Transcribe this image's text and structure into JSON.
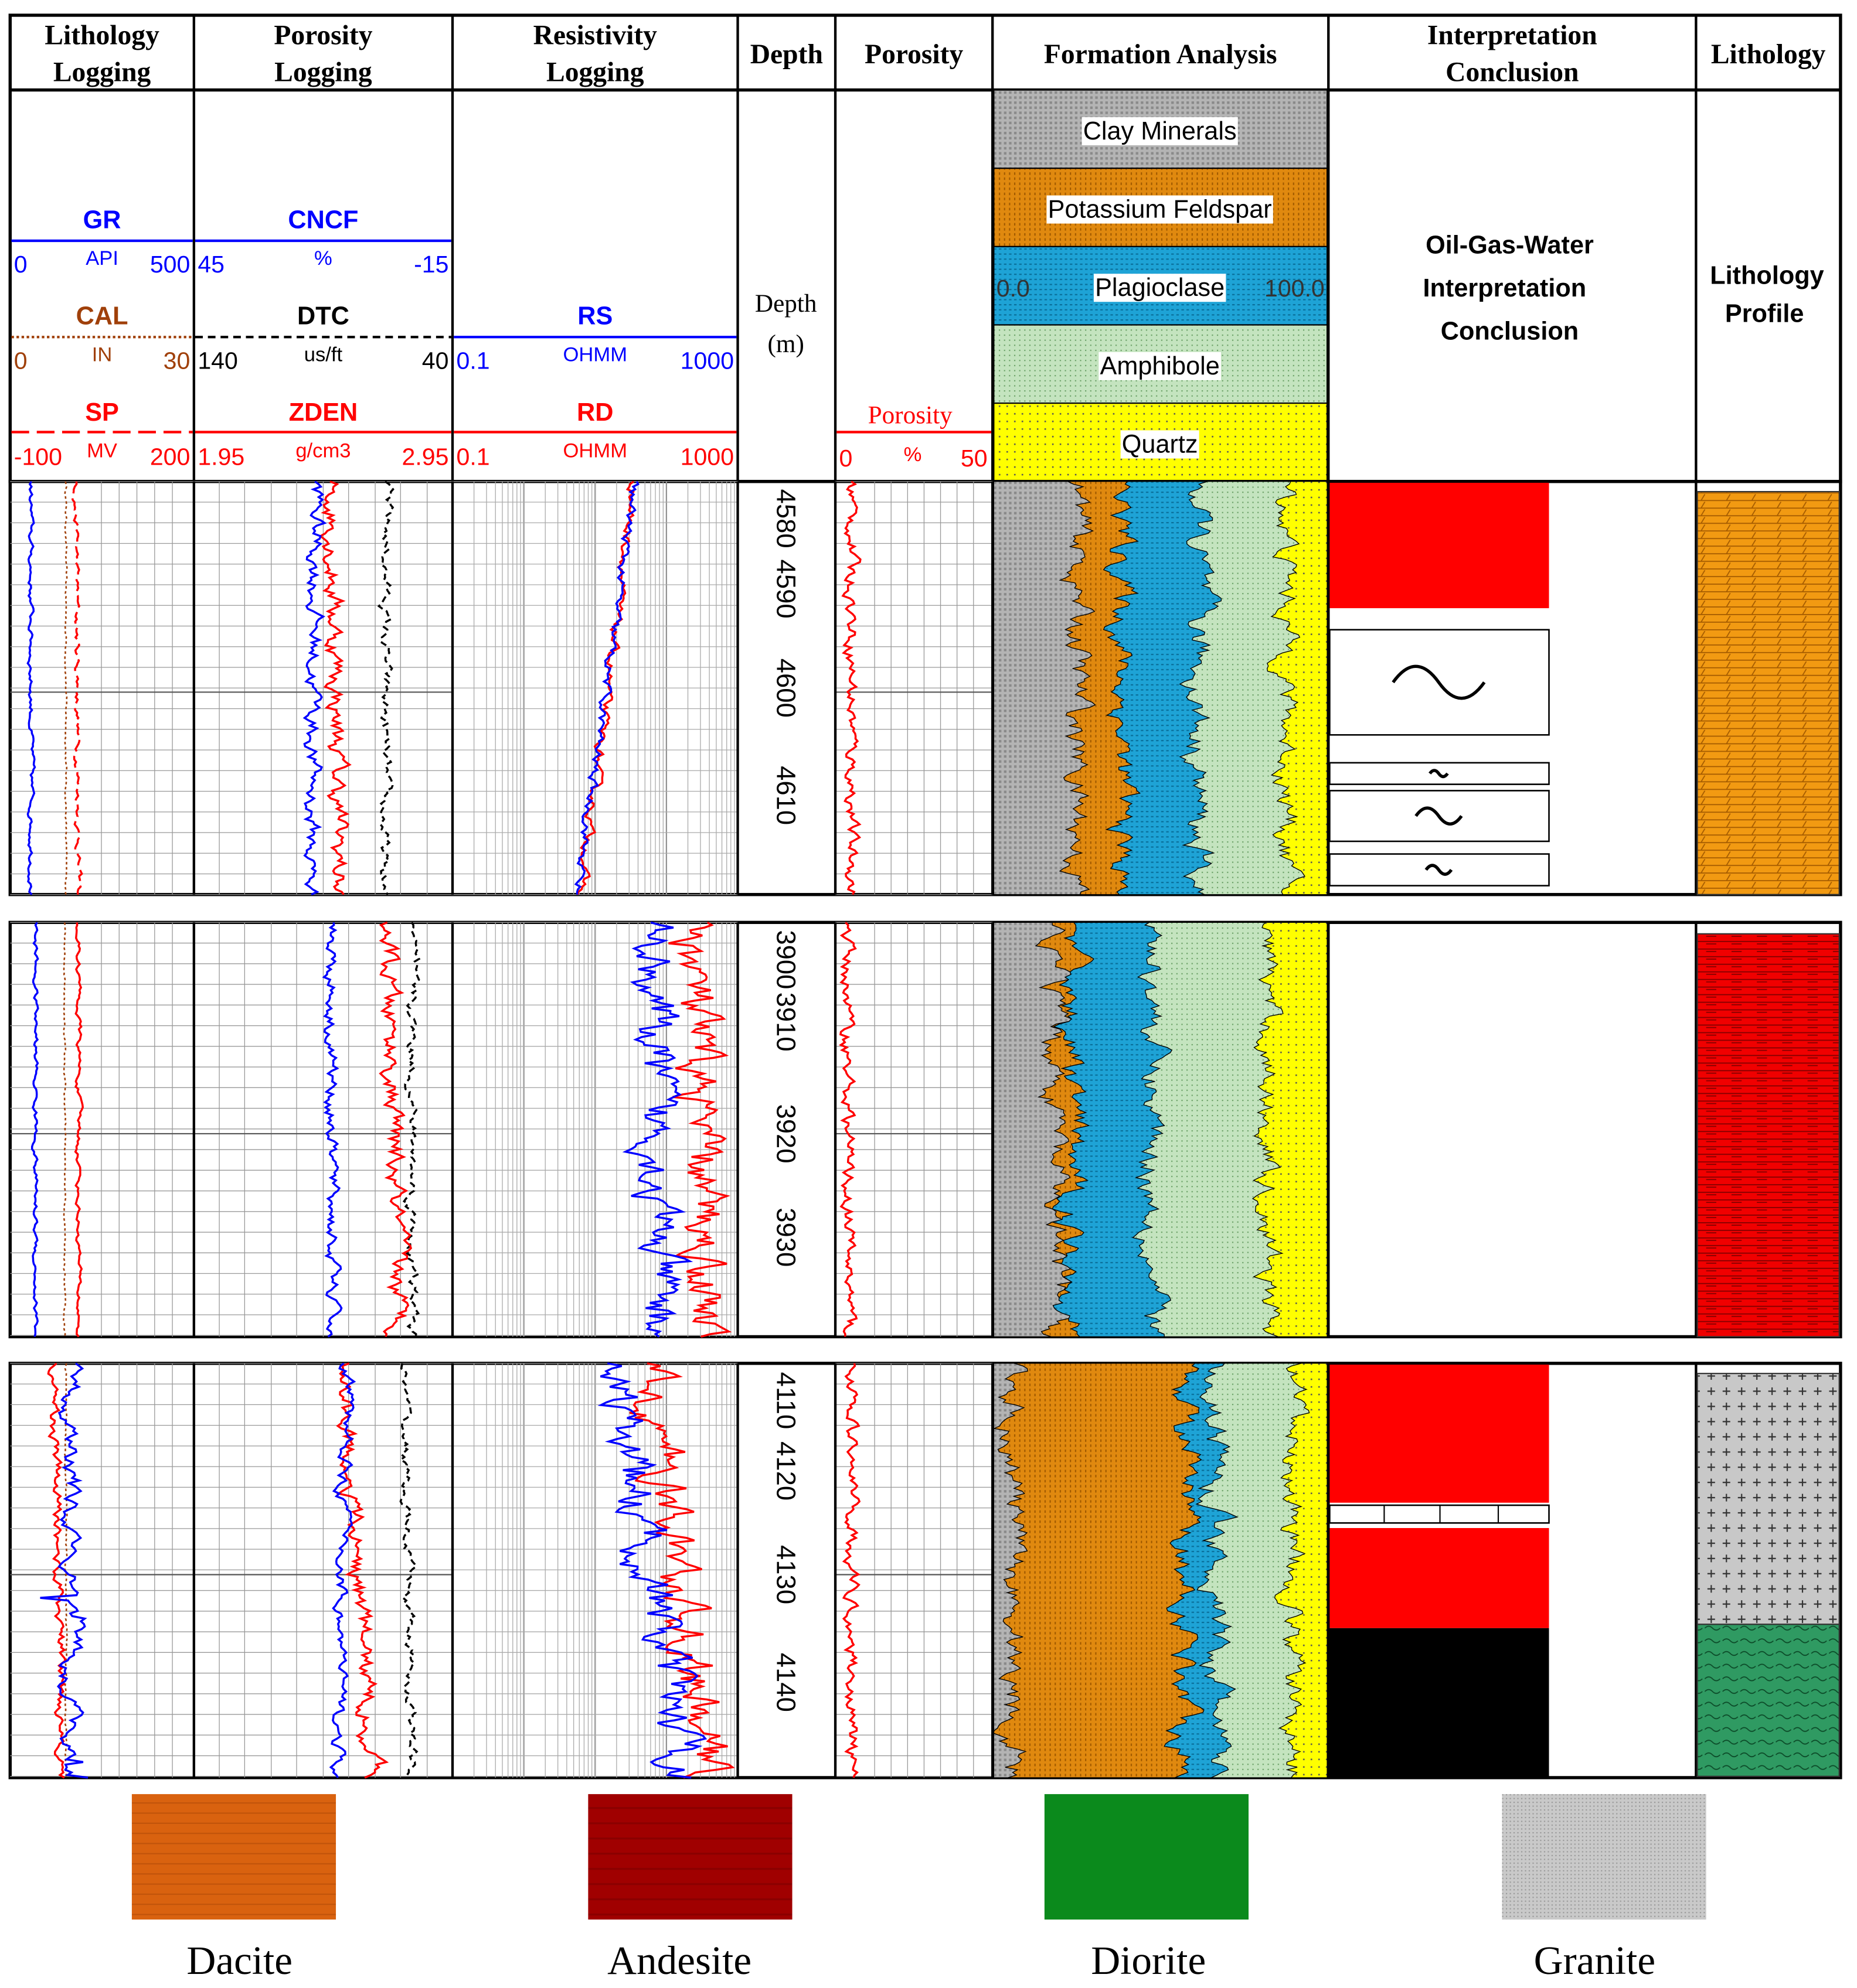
{
  "columns": [
    {
      "title": [
        "Lithology",
        "Logging"
      ]
    },
    {
      "title": [
        "Porosity",
        "Logging"
      ]
    },
    {
      "title": [
        "Resistivity",
        "Logging"
      ]
    },
    {
      "title": [
        "Depth"
      ]
    },
    {
      "title": [
        "Porosity"
      ]
    },
    {
      "title": [
        "Formation Analysis"
      ]
    },
    {
      "title": [
        "Interpretation",
        "Conclusion"
      ]
    },
    {
      "title": [
        "Lithology"
      ]
    }
  ],
  "curve_headers": [
    {
      "col": 0,
      "row": 0,
      "name": "GR",
      "min": "0",
      "unit": "API",
      "max": "500",
      "color": "#0000ff",
      "line": "solid"
    },
    {
      "col": 0,
      "row": 1,
      "name": "CAL",
      "min": "0",
      "unit": "IN",
      "max": "30",
      "color": "#a0400a",
      "line": "dotted"
    },
    {
      "col": 0,
      "row": 2,
      "name": "SP",
      "min": "-100",
      "unit": "MV",
      "max": "200",
      "color": "#ff0000",
      "line": "dashed"
    },
    {
      "col": 1,
      "row": 0,
      "name": "CNCF",
      "min": "45",
      "unit": "%",
      "max": "-15",
      "color": "#0000ff",
      "line": "solid"
    },
    {
      "col": 1,
      "row": 1,
      "name": "DTC",
      "min": "140",
      "unit": "us/ft",
      "max": "40",
      "color": "#000000",
      "line": "dashed"
    },
    {
      "col": 1,
      "row": 2,
      "name": "ZDEN",
      "min": "1.95",
      "unit": "g/cm3",
      "max": "2.95",
      "color": "#ff0000",
      "line": "solid"
    },
    {
      "col": 2,
      "row": 1,
      "name": "RS",
      "min": "0.1",
      "unit": "OHMM",
      "max": "1000",
      "color": "#0000ff",
      "line": "solid"
    },
    {
      "col": 2,
      "row": 2,
      "name": "RD",
      "min": "0.1",
      "unit": "OHMM",
      "max": "1000",
      "color": "#ff0000",
      "line": "solid"
    }
  ],
  "depth_header": {
    "label": "Depth",
    "unit": "(m)"
  },
  "porosity_header": {
    "name": "Porosity",
    "min": "0",
    "unit": "%",
    "max": "50",
    "color": "#ff0000"
  },
  "formation_legend": {
    "items": [
      {
        "label": "Clay Minerals",
        "color": "#a8a8a8"
      },
      {
        "label": "Potassium Feldspar",
        "color": "#e0890f"
      },
      {
        "label": "Plagioclase",
        "color": "#1ea3d6"
      },
      {
        "label": "Amphibole",
        "color": "#b9dcb3"
      },
      {
        "label": "Quartz",
        "color": "#ffff00"
      }
    ],
    "scale_min": "0.0",
    "scale_max": "100.0"
  },
  "interpretation_header": [
    "Oil-Gas-Water",
    "Interpretation",
    "Conclusion"
  ],
  "lithology_header": [
    "Lithology",
    "Profile"
  ],
  "tracks": [
    {
      "depth_ticks": [
        "4580",
        "4590",
        "4600",
        "4610"
      ]
    },
    {
      "depth_ticks": [
        "3900",
        "3910",
        "3920",
        "3930"
      ]
    },
    {
      "depth_ticks": [
        "4110",
        "4120",
        "4130",
        "4140"
      ]
    }
  ],
  "legend": [
    {
      "label": "Dacite",
      "color": "#d9620f"
    },
    {
      "label": "Andesite",
      "color": "#a00000"
    },
    {
      "label": "Diorite",
      "color": "#0b8a1c"
    },
    {
      "label": "Granite",
      "color": "#bdbdbd"
    }
  ]
}
